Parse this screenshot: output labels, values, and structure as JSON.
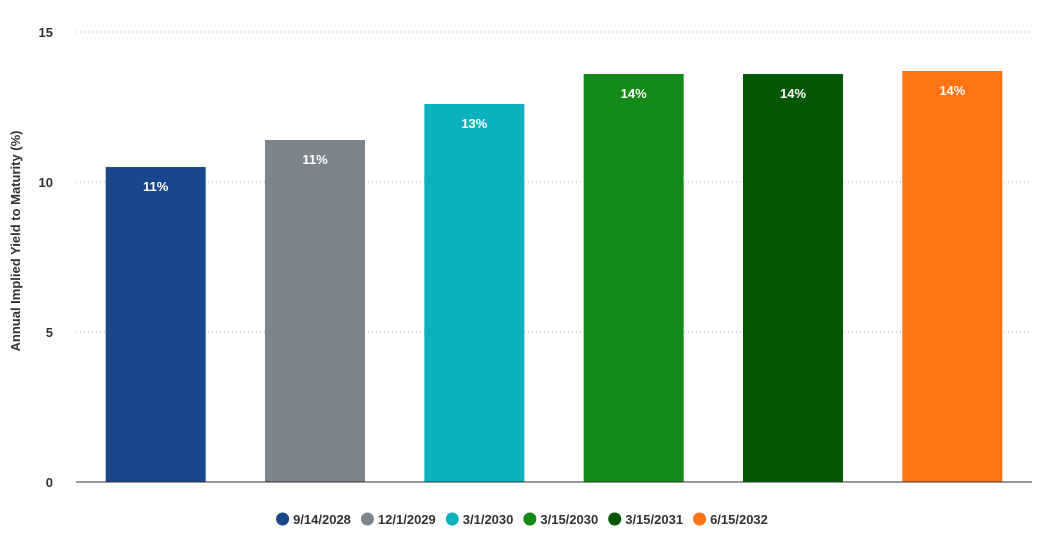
{
  "chart_data": {
    "type": "bar",
    "ylabel": "Annual Implied Yield to Maturity (%)",
    "ylim": [
      0,
      15
    ],
    "yticks": [
      0,
      5,
      10,
      15
    ],
    "grid": true,
    "legend_position": "bottom",
    "series": [
      {
        "name": "9/14/2028",
        "value": 10.5,
        "label": "11%",
        "color": "#1a468c"
      },
      {
        "name": "12/1/2029",
        "value": 11.4,
        "label": "11%",
        "color": "#7d858c"
      },
      {
        "name": "3/1/2030",
        "value": 12.6,
        "label": "13%",
        "color": "#0cb1bf"
      },
      {
        "name": "3/15/2030",
        "value": 13.6,
        "label": "14%",
        "color": "#128a15"
      },
      {
        "name": "3/15/2031",
        "value": 13.6,
        "label": "14%",
        "color": "#035703"
      },
      {
        "name": "6/15/2032",
        "value": 13.7,
        "label": "14%",
        "color": "#ff7312"
      }
    ]
  }
}
